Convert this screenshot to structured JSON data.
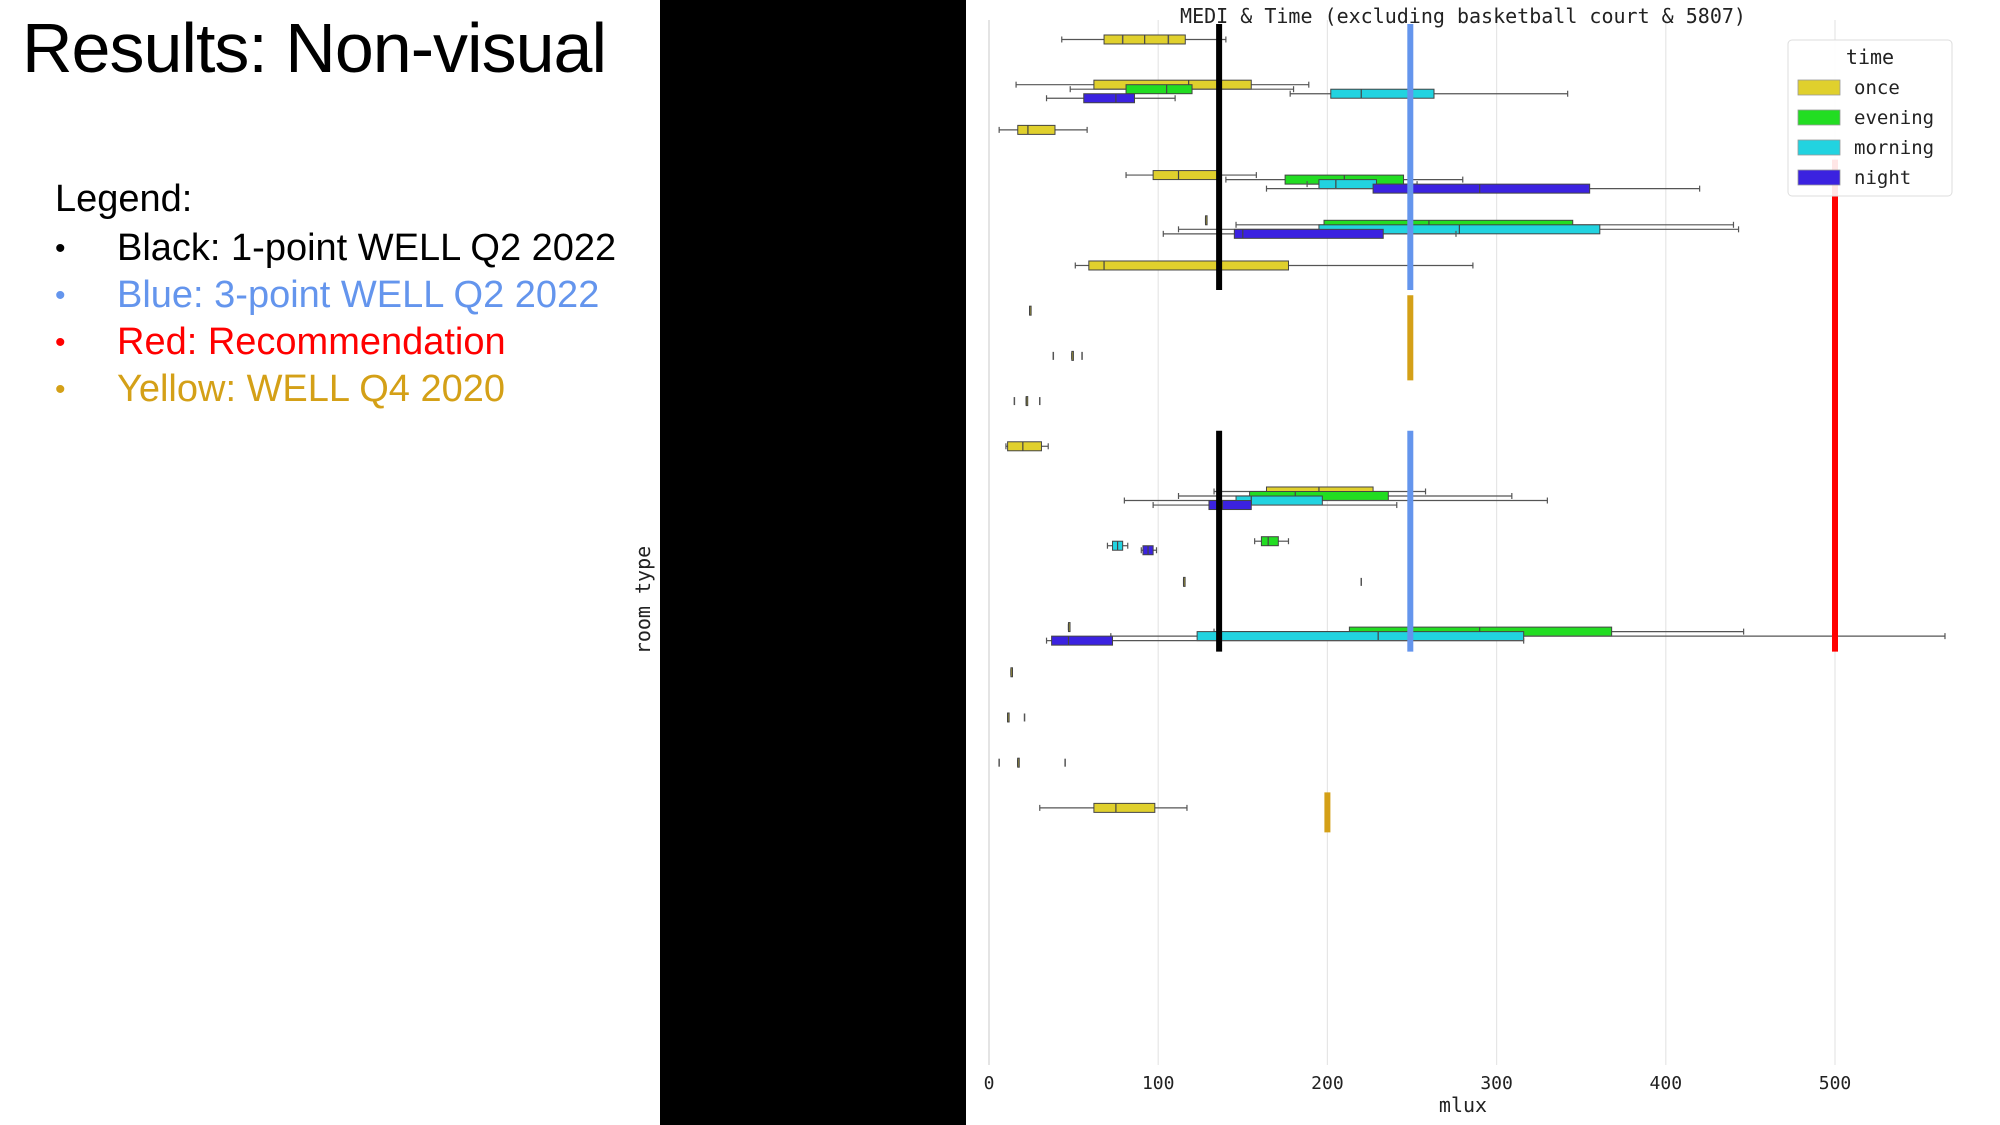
{
  "slide": {
    "title": "Results: Non-visual",
    "legend_heading": "Legend:",
    "legend_items": [
      {
        "text": "Black: 1-point WELL Q2 2022",
        "color": "#000000"
      },
      {
        "text": "Blue: 3-point WELL Q2 2022",
        "color": "#6495ed"
      },
      {
        "text": "Red: Recommendation",
        "color": "#ff0000"
      },
      {
        "text": "Yellow: WELL Q4 2020",
        "color": "#d4a017"
      }
    ]
  },
  "chart_data": {
    "type": "boxplot",
    "orientation": "horizontal",
    "title": "MEDI & Time (excluding basketball court & 5807)",
    "xlabel": "mlux",
    "ylabel": "room type",
    "xlim": [
      0,
      570
    ],
    "xticks": [
      0,
      100,
      200,
      300,
      400,
      500
    ],
    "grid": "vertical",
    "legend": {
      "title": "time",
      "position": "top-right",
      "entries": [
        {
          "name": "once",
          "color": "#e0d02d"
        },
        {
          "name": "evening",
          "color": "#22dd22"
        },
        {
          "name": "morning",
          "color": "#22d3e0"
        },
        {
          "name": "night",
          "color": "#3b22e0"
        }
      ]
    },
    "boxes": [
      {
        "row": 0,
        "time": "once",
        "min": 43,
        "q1": 68,
        "median": 92,
        "q3": 116,
        "max": 140,
        "outliers": [
          79,
          106
        ]
      },
      {
        "row": 1,
        "time": "once",
        "min": 16,
        "q1": 62,
        "median": 118,
        "q3": 155,
        "max": 189,
        "outliers": []
      },
      {
        "row": 1,
        "time": "evening",
        "min": 48,
        "q1": 81,
        "median": 105,
        "q3": 120,
        "max": 180,
        "outliers": []
      },
      {
        "row": 1,
        "time": "morning",
        "min": 178,
        "q1": 202,
        "median": 220,
        "q3": 263,
        "max": 342,
        "outliers": []
      },
      {
        "row": 1,
        "time": "night",
        "min": 34,
        "q1": 56,
        "median": 75,
        "q3": 86,
        "max": 110,
        "outliers": []
      },
      {
        "row": 2,
        "time": "once",
        "min": 6,
        "q1": 17,
        "median": 23,
        "q3": 39,
        "max": 58,
        "outliers": []
      },
      {
        "row": 3,
        "time": "once",
        "min": 81,
        "q1": 97,
        "median": 112,
        "q3": 135,
        "max": 158,
        "outliers": []
      },
      {
        "row": 3,
        "time": "evening",
        "min": 140,
        "q1": 175,
        "median": 210,
        "q3": 245,
        "max": 280,
        "outliers": []
      },
      {
        "row": 3,
        "time": "morning",
        "min": 188,
        "q1": 195,
        "median": 205,
        "q3": 229,
        "max": 253,
        "outliers": []
      },
      {
        "row": 3,
        "time": "night",
        "min": 164,
        "q1": 227,
        "median": 290,
        "q3": 355,
        "max": 420,
        "outliers": []
      },
      {
        "row": 4,
        "time": "once",
        "min": 128,
        "q1": 128,
        "median": 128,
        "q3": 128,
        "max": 128,
        "outliers": []
      },
      {
        "row": 4,
        "time": "evening",
        "min": 146,
        "q1": 198,
        "median": 260,
        "q3": 345,
        "max": 440,
        "outliers": []
      },
      {
        "row": 4,
        "time": "morning",
        "min": 112,
        "q1": 195,
        "median": 278,
        "q3": 361,
        "max": 443,
        "outliers": []
      },
      {
        "row": 4,
        "time": "night",
        "min": 103,
        "q1": 145,
        "median": 150,
        "q3": 233,
        "max": 276,
        "outliers": []
      },
      {
        "row": 5,
        "time": "once",
        "min": 51,
        "q1": 59,
        "median": 68,
        "q3": 177,
        "max": 286,
        "outliers": []
      },
      {
        "row": 6,
        "time": "once",
        "min": 24,
        "q1": 24,
        "median": 24,
        "q3": 24,
        "max": 24,
        "outliers": []
      },
      {
        "row": 7,
        "time": "once",
        "min": 49,
        "q1": 49,
        "median": 49,
        "q3": 49,
        "max": 49,
        "outliers": [
          38,
          55
        ]
      },
      {
        "row": 8,
        "time": "once",
        "min": 22,
        "q1": 22,
        "median": 22,
        "q3": 22,
        "max": 22,
        "outliers": [
          15,
          30
        ]
      },
      {
        "row": 9,
        "time": "once",
        "min": 10,
        "q1": 11,
        "median": 20,
        "q3": 31,
        "max": 35,
        "outliers": []
      },
      {
        "row": 10,
        "time": "once",
        "min": 133,
        "q1": 164,
        "median": 195,
        "q3": 227,
        "max": 258,
        "outliers": []
      },
      {
        "row": 10,
        "time": "evening",
        "min": 112,
        "q1": 154,
        "median": 181,
        "q3": 236,
        "max": 309,
        "outliers": []
      },
      {
        "row": 10,
        "time": "morning",
        "min": 80,
        "q1": 146,
        "median": 155,
        "q3": 197,
        "max": 330,
        "outliers": []
      },
      {
        "row": 10,
        "time": "night",
        "min": 97,
        "q1": 130,
        "median": 138,
        "q3": 155,
        "max": 241,
        "outliers": []
      },
      {
        "row": 11,
        "time": "evening",
        "min": 157,
        "q1": 161,
        "median": 165,
        "q3": 171,
        "max": 177,
        "outliers": []
      },
      {
        "row": 11,
        "time": "morning",
        "min": 70,
        "q1": 73,
        "median": 76,
        "q3": 79,
        "max": 82,
        "outliers": []
      },
      {
        "row": 11,
        "time": "night",
        "min": 90,
        "q1": 91,
        "median": 94,
        "q3": 97,
        "max": 99,
        "outliers": []
      },
      {
        "row": 12,
        "time": "once",
        "min": 115,
        "q1": 115,
        "median": 115,
        "q3": 115,
        "max": 115,
        "outliers": [
          220
        ]
      },
      {
        "row": 13,
        "time": "once",
        "min": 47,
        "q1": 47,
        "median": 47,
        "q3": 47,
        "max": 47,
        "outliers": []
      },
      {
        "row": 13,
        "time": "evening",
        "min": 133,
        "q1": 213,
        "median": 290,
        "q3": 368,
        "max": 446,
        "outliers": []
      },
      {
        "row": 13,
        "time": "morning",
        "min": 72,
        "q1": 123,
        "median": 230,
        "q3": 316,
        "max": 565,
        "outliers": []
      },
      {
        "row": 13,
        "time": "night",
        "min": 34,
        "q1": 37,
        "median": 47,
        "q3": 73,
        "max": 316,
        "outliers": []
      },
      {
        "row": 14,
        "time": "once",
        "min": 13,
        "q1": 13,
        "median": 13,
        "q3": 13,
        "max": 13,
        "outliers": []
      },
      {
        "row": 15,
        "time": "once",
        "min": 11,
        "q1": 11,
        "median": 11,
        "q3": 11,
        "max": 11,
        "outliers": [
          21
        ]
      },
      {
        "row": 16,
        "time": "once",
        "min": 17,
        "q1": 17,
        "median": 17,
        "q3": 17,
        "max": 17,
        "outliers": [
          6,
          45
        ]
      },
      {
        "row": 17,
        "time": "once",
        "min": 30,
        "q1": 62,
        "median": 75,
        "q3": 98,
        "max": 117,
        "outliers": []
      }
    ],
    "reference_lines": [
      {
        "name": "1-point WELL Q2 2022",
        "color": "#000000",
        "value": 136,
        "row_span": [
          0,
          5
        ]
      },
      {
        "name": "1-point WELL Q2 2022",
        "color": "#000000",
        "value": 136,
        "row_span": [
          9,
          13
        ]
      },
      {
        "name": "3-point WELL Q2 2022",
        "color": "#6495ed",
        "value": 249,
        "row_span": [
          0,
          5
        ]
      },
      {
        "name": "WELL Q4 2020",
        "color": "#d4a017",
        "value": 249,
        "row_span": [
          6,
          7
        ]
      },
      {
        "name": "3-point WELL Q2 2022",
        "color": "#6495ed",
        "value": 249,
        "row_span": [
          9,
          13
        ]
      },
      {
        "name": "Recommendation",
        "color": "#ff0000",
        "value": 500,
        "row_span": [
          3,
          13
        ]
      },
      {
        "name": "WELL Q4 2020",
        "color": "#d4a017",
        "value": 200,
        "row_span": [
          17,
          17
        ]
      }
    ]
  }
}
